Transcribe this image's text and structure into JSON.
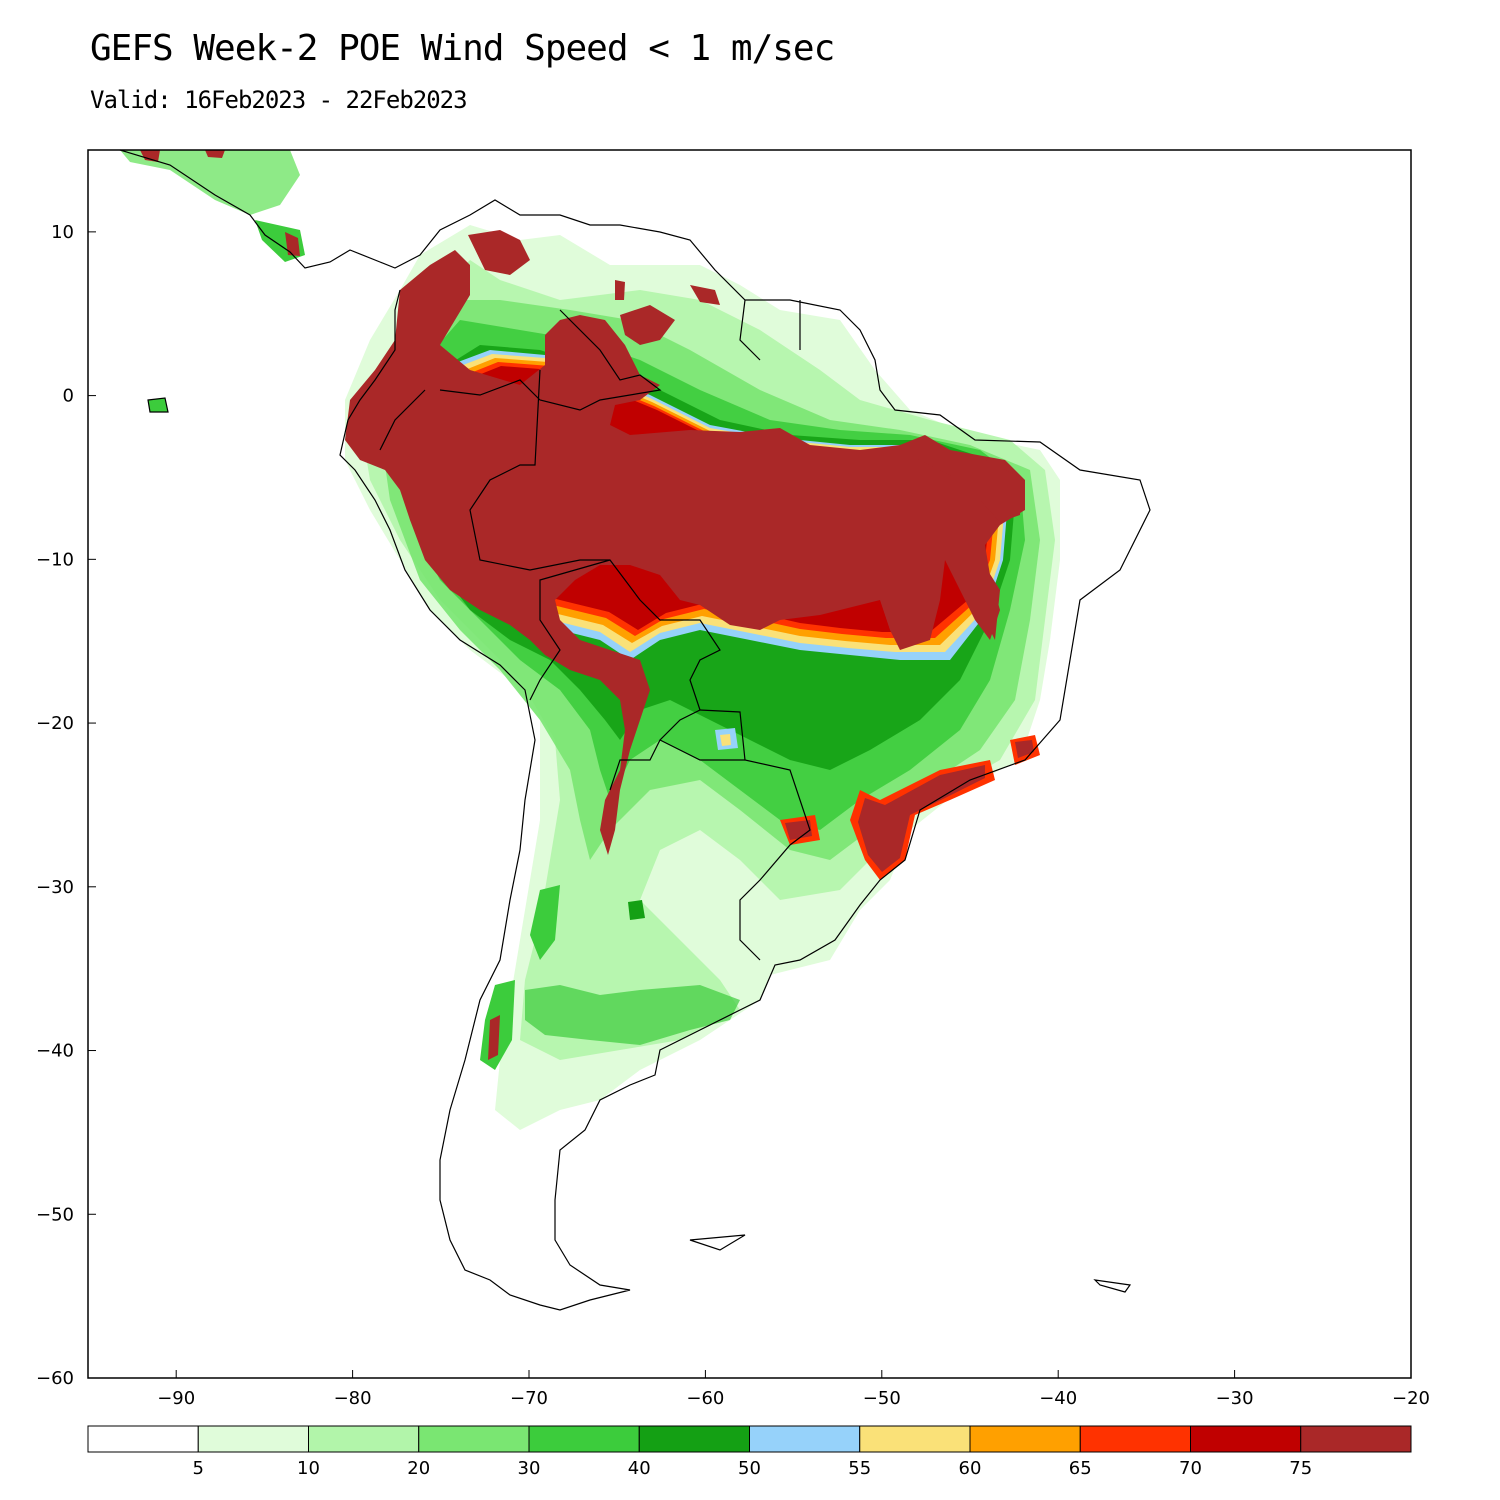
{
  "header": {
    "title": "GEFS Week-2 POE Wind Speed < 1 m/sec",
    "subtitle": "Valid: 16Feb2023 - 22Feb2023"
  },
  "map": {
    "region": "South America",
    "lon_range": [
      -95,
      -20
    ],
    "lat_range": [
      -60,
      15
    ],
    "x_ticks": [
      {
        "value": -90,
        "label": "−90"
      },
      {
        "value": -80,
        "label": "−80"
      },
      {
        "value": -70,
        "label": "−70"
      },
      {
        "value": -60,
        "label": "−60"
      },
      {
        "value": -50,
        "label": "−50"
      },
      {
        "value": -40,
        "label": "−40"
      },
      {
        "value": -30,
        "label": "−30"
      },
      {
        "value": -20,
        "label": "−20"
      }
    ],
    "y_ticks": [
      {
        "value": 10,
        "label": "10"
      },
      {
        "value": 0,
        "label": "0"
      },
      {
        "value": -10,
        "label": "−10"
      },
      {
        "value": -20,
        "label": "−20"
      },
      {
        "value": -30,
        "label": "−30"
      },
      {
        "value": -40,
        "label": "−40"
      },
      {
        "value": -50,
        "label": "−50"
      },
      {
        "value": -60,
        "label": "−60"
      }
    ]
  },
  "colorbar": {
    "colors": [
      "#ffffff",
      "#e0fcda",
      "#b2f5aa",
      "#7ae672",
      "#3ccc3c",
      "#14a014",
      "#96d2fa",
      "#fae178",
      "#ffa000",
      "#ff3200",
      "#c00000",
      "#aa2828"
    ],
    "labels": [
      "5",
      "10",
      "20",
      "30",
      "40",
      "50",
      "55",
      "60",
      "65",
      "70",
      "75"
    ]
  },
  "colors": {
    "high_prob": "#aa2828",
    "very_high": "#c00000",
    "coast": "#000000"
  }
}
